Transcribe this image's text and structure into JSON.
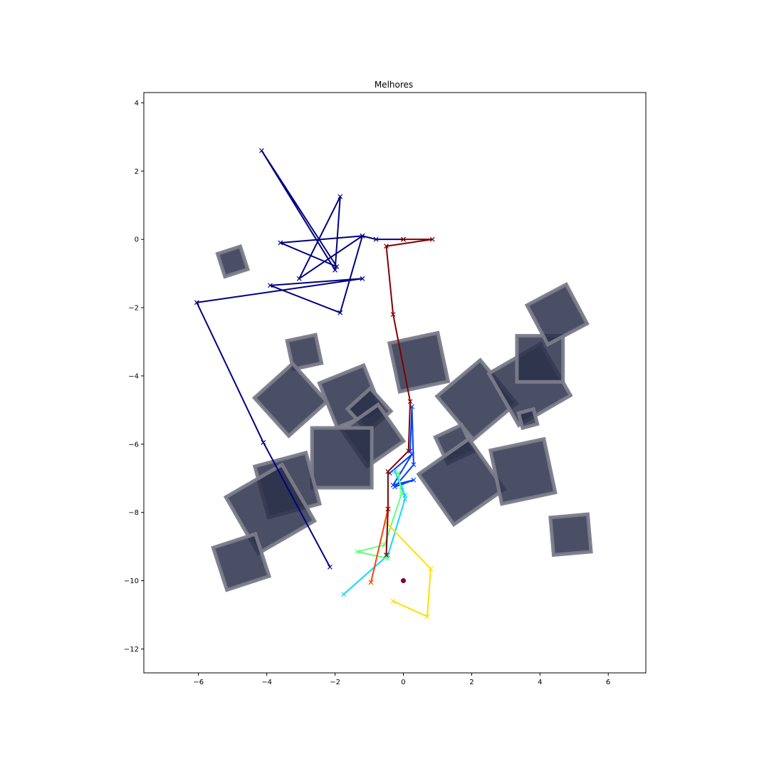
{
  "chart_data": {
    "type": "line",
    "title": "Melhores",
    "xlabel": "",
    "ylabel": "",
    "xlim": [
      -7.6,
      7.1
    ],
    "ylim": [
      -12.7,
      4.3
    ],
    "x_ticks": [
      -6,
      -4,
      -2,
      0,
      2,
      4,
      6
    ],
    "y_ticks": [
      -12,
      -10,
      -8,
      -6,
      -4,
      -2,
      0,
      2,
      4
    ],
    "grid": false,
    "legend": "none",
    "obstacle_color": "#2b304a",
    "obstacle_edge_color": "#7a7c8a",
    "obstacles": [
      {
        "cx": -5.0,
        "cy": -0.65,
        "size": 0.7,
        "angle": 18
      },
      {
        "cx": -2.9,
        "cy": -3.3,
        "size": 0.85,
        "angle": 12
      },
      {
        "cx": -3.3,
        "cy": -4.7,
        "size": 1.5,
        "angle": 42
      },
      {
        "cx": -1.55,
        "cy": -4.6,
        "size": 1.4,
        "angle": 22
      },
      {
        "cx": -1.0,
        "cy": -5.0,
        "size": 0.9,
        "angle": 42
      },
      {
        "cx": -0.9,
        "cy": -5.75,
        "size": 1.3,
        "angle": 35
      },
      {
        "cx": -1.8,
        "cy": -6.4,
        "size": 1.75,
        "angle": 0
      },
      {
        "cx": 0.45,
        "cy": -3.6,
        "size": 1.45,
        "angle": 12
      },
      {
        "cx": 2.15,
        "cy": -4.7,
        "size": 1.65,
        "angle": 40
      },
      {
        "cx": 3.7,
        "cy": -4.25,
        "size": 1.75,
        "angle": 30
      },
      {
        "cx": 4.0,
        "cy": -3.5,
        "size": 1.35,
        "angle": 0
      },
      {
        "cx": 4.5,
        "cy": -2.2,
        "size": 1.3,
        "angle": 28
      },
      {
        "cx": 3.65,
        "cy": -5.25,
        "size": 0.45,
        "angle": 15
      },
      {
        "cx": 1.5,
        "cy": -6.0,
        "size": 0.85,
        "angle": 25
      },
      {
        "cx": 1.7,
        "cy": -7.1,
        "size": 1.8,
        "angle": 35
      },
      {
        "cx": 3.5,
        "cy": -6.8,
        "size": 1.6,
        "angle": 12
      },
      {
        "cx": -3.4,
        "cy": -7.2,
        "size": 1.55,
        "angle": 15
      },
      {
        "cx": -3.9,
        "cy": -7.9,
        "size": 1.9,
        "angle": 30
      },
      {
        "cx": -4.75,
        "cy": -9.45,
        "size": 1.3,
        "angle": 18
      },
      {
        "cx": 4.9,
        "cy": -8.65,
        "size": 1.1,
        "angle": 5
      }
    ],
    "goal": {
      "x": 0,
      "y": -10,
      "color": "#7a0040"
    },
    "series": [
      {
        "color": "#00007f",
        "points": [
          [
            0,
            0
          ],
          [
            -0.8,
            0
          ],
          [
            -1.2,
            0.1
          ],
          [
            -3.05,
            -1.15
          ],
          [
            -1.85,
            1.25
          ],
          [
            -2.0,
            -0.9
          ],
          [
            -4.15,
            2.6
          ],
          [
            -1.95,
            -0.8
          ],
          [
            -3.6,
            -0.1
          ],
          [
            -1.2,
            0.1
          ],
          [
            -1.85,
            -2.15
          ],
          [
            -3.9,
            -1.35
          ],
          [
            -1.2,
            -1.15
          ],
          [
            -6.05,
            -1.85
          ],
          [
            -4.1,
            -5.95
          ],
          [
            -2.15,
            -9.6
          ]
        ]
      },
      {
        "color": "#0040ff",
        "points": [
          [
            0.2,
            -6.2
          ],
          [
            0.25,
            -4.9
          ],
          [
            0.3,
            -6.6
          ],
          [
            -0.25,
            -7.25
          ],
          [
            0.3,
            -7.05
          ],
          [
            -0.3,
            -7.2
          ],
          [
            0.25,
            -6.3
          ],
          [
            -0.4,
            -6.85
          ]
        ]
      },
      {
        "color": "#10d8ff",
        "points": [
          [
            -0.25,
            -6.8
          ],
          [
            0.05,
            -7.5
          ],
          [
            -0.05,
            -7.25
          ],
          [
            0.05,
            -7.6
          ],
          [
            -0.45,
            -9.25
          ],
          [
            -1.75,
            -10.4
          ]
        ]
      },
      {
        "color": "#66ff80",
        "points": [
          [
            -0.15,
            -6.85
          ],
          [
            -0.05,
            -7.45
          ],
          [
            -0.55,
            -8.95
          ],
          [
            -1.35,
            -9.15
          ],
          [
            -0.45,
            -9.35
          ]
        ]
      },
      {
        "color": "#ffe000",
        "points": [
          [
            -0.5,
            -8.3
          ],
          [
            0.8,
            -9.65
          ],
          [
            0.7,
            -11.05
          ],
          [
            -0.3,
            -10.6
          ]
        ]
      },
      {
        "color": "#ff4000",
        "points": [
          [
            -0.45,
            -7.9
          ],
          [
            -0.95,
            -10.05
          ]
        ]
      },
      {
        "color": "#800000",
        "points": [
          [
            0,
            0
          ],
          [
            0.85,
            0
          ],
          [
            -0.5,
            -0.2
          ],
          [
            -0.3,
            -2.2
          ],
          [
            0.2,
            -4.75
          ],
          [
            0.15,
            -6.2
          ],
          [
            -0.45,
            -6.8
          ],
          [
            -0.45,
            -7.9
          ],
          [
            -0.5,
            -9.25
          ]
        ]
      }
    ]
  }
}
